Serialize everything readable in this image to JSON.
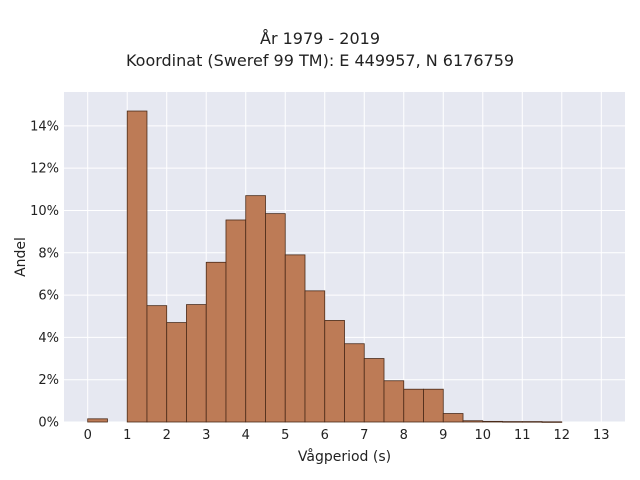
{
  "chart_data": {
    "type": "bar",
    "title_lines": [
      "År 1979 - 2019",
      "Koordinat (Sweref 99 TM): E 449957, N 6176759"
    ],
    "xlabel": "Vågperiod (s)",
    "ylabel": "Andel",
    "bin_width": 0.5,
    "bin_starts": [
      0,
      0.5,
      1,
      1.5,
      2,
      2.5,
      3,
      3.5,
      4,
      4.5,
      5,
      5.5,
      6,
      6.5,
      7,
      7.5,
      8,
      8.5,
      9,
      9.5,
      10,
      10.5,
      11,
      11.5,
      12,
      12.5
    ],
    "values": [
      0.15,
      0,
      14.7,
      5.5,
      4.7,
      5.55,
      7.55,
      9.55,
      10.7,
      9.85,
      7.9,
      6.2,
      4.8,
      3.7,
      3.0,
      1.95,
      1.55,
      1.55,
      0.4,
      0.06,
      0.03,
      0.02,
      0.02,
      0.01,
      0,
      0
    ],
    "x_ticks": [
      0,
      1,
      2,
      3,
      4,
      5,
      6,
      7,
      8,
      9,
      10,
      11,
      12,
      13
    ],
    "x_tick_labels": [
      "0",
      "1",
      "2",
      "3",
      "4",
      "5",
      "6",
      "7",
      "8",
      "9",
      "10",
      "11",
      "12",
      "13"
    ],
    "y_ticks": [
      0,
      2,
      4,
      6,
      8,
      10,
      12,
      14
    ],
    "y_tick_labels": [
      "0%",
      "2%",
      "4%",
      "6%",
      "8%",
      "10%",
      "12%",
      "14%"
    ],
    "xlim": [
      -0.6,
      13.6
    ],
    "ylim": [
      0,
      15.6
    ],
    "grid": true,
    "colors": {
      "bar_fill": "#bd7b56",
      "bar_stroke": "#4a2a18",
      "plot_bg": "#e6e8f1",
      "grid": "#ffffff"
    }
  }
}
